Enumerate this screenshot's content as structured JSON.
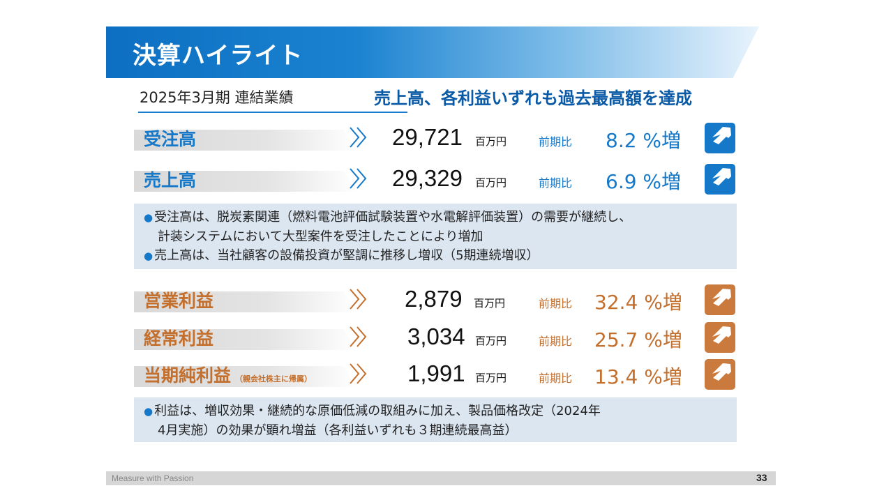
{
  "slide": {
    "title": "決算ハイライト",
    "period_label": "2025年3月期 連結業績",
    "headline": "売上高、各利益いずれも過去最高額を達成",
    "unit": "百万円",
    "yoy_prefix": "前期比",
    "colors": {
      "blue": "#1578c9",
      "orange": "#c97a3c",
      "note_bg": "#dce6f1"
    },
    "icons": {
      "chevrons": "double-chevron-right-icon",
      "arrow": "arrow-up-right-icon"
    }
  },
  "metrics_top": [
    {
      "label": "受注高",
      "value": "29,721",
      "yoy": "8.2 %増"
    },
    {
      "label": "売上高",
      "value": "29,329",
      "yoy": "6.9 %増"
    }
  ],
  "note_top": {
    "line1": "受注高は、脱炭素関連（燃料電池評価試験装置や水電解評価装置）の需要が継続し、",
    "line2": "計装システムにおいて大型案件を受注したことにより増加",
    "line3": "売上高は、当社顧客の設備投資が堅調に推移し増収（5期連続増収）"
  },
  "metrics_bottom": [
    {
      "label": "営業利益",
      "sub": "",
      "value": "2,879",
      "yoy": "32.4 %増"
    },
    {
      "label": "経常利益",
      "sub": "",
      "value": "3,034",
      "yoy": "25.7 %増"
    },
    {
      "label": "当期純利益",
      "sub": "（親会社株主に帰属）",
      "value": "1,991",
      "yoy": "13.4 %増"
    }
  ],
  "note_bottom": {
    "line1": "利益は、増収効果・継続的な原価低減の取組みに加え、製品価格改定（2024年",
    "line2": "4月実施）の効果が顕れ増益（各利益いずれも３期連続最高益）"
  },
  "bullet": "●",
  "footer": {
    "tagline": "Measure with Passion",
    "page": "33"
  }
}
